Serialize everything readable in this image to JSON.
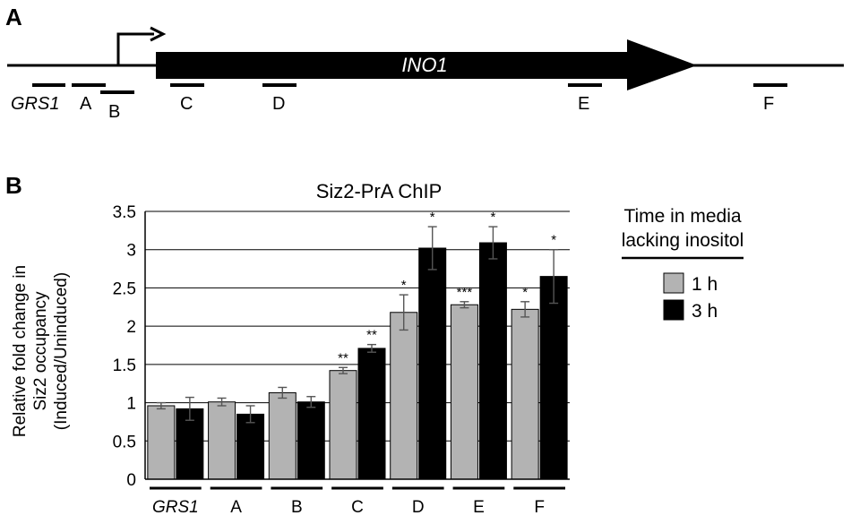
{
  "panel_a": {
    "label": "A",
    "gene_name": "INO1",
    "regions": [
      "GRS1",
      "A",
      "B",
      "C",
      "D",
      "E",
      "F"
    ]
  },
  "chart_data": {
    "panel_label": "B",
    "type": "bar",
    "title": "Siz2-PrA ChIP",
    "ylabel_lines": [
      "Relative fold change in",
      "Siz2 occupancy",
      "(Induced/Uninduced)"
    ],
    "xlabel": "",
    "ylim": [
      0,
      3.5
    ],
    "yticks": [
      0,
      0.5,
      1,
      1.5,
      2,
      2.5,
      3,
      3.5
    ],
    "ytick_labels": [
      "0",
      "0.5",
      "1",
      "1.5",
      "2",
      "2.5",
      "3",
      "3.5"
    ],
    "grid": true,
    "categories": [
      "GRS1",
      "A",
      "B",
      "C",
      "D",
      "E",
      "F"
    ],
    "italic_categories": [
      "GRS1"
    ],
    "series": [
      {
        "name": "1 h",
        "color": "#b3b3b3",
        "values": [
          0.96,
          1.01,
          1.13,
          1.42,
          2.18,
          2.28,
          2.22
        ],
        "errors": [
          0.04,
          0.05,
          0.07,
          0.04,
          0.23,
          0.04,
          0.1
        ],
        "significance": [
          "",
          "",
          "",
          "**",
          "*",
          "***",
          "*"
        ]
      },
      {
        "name": "3 h",
        "color": "#000000",
        "values": [
          0.92,
          0.85,
          1.01,
          1.71,
          3.02,
          3.09,
          2.65
        ],
        "errors": [
          0.15,
          0.11,
          0.07,
          0.05,
          0.28,
          0.21,
          0.35
        ],
        "significance": [
          "",
          "",
          "",
          "**",
          "*",
          "*",
          "*"
        ]
      }
    ],
    "legend": {
      "title_lines": [
        "Time in media",
        "lacking inositol"
      ],
      "placement": "right"
    }
  }
}
